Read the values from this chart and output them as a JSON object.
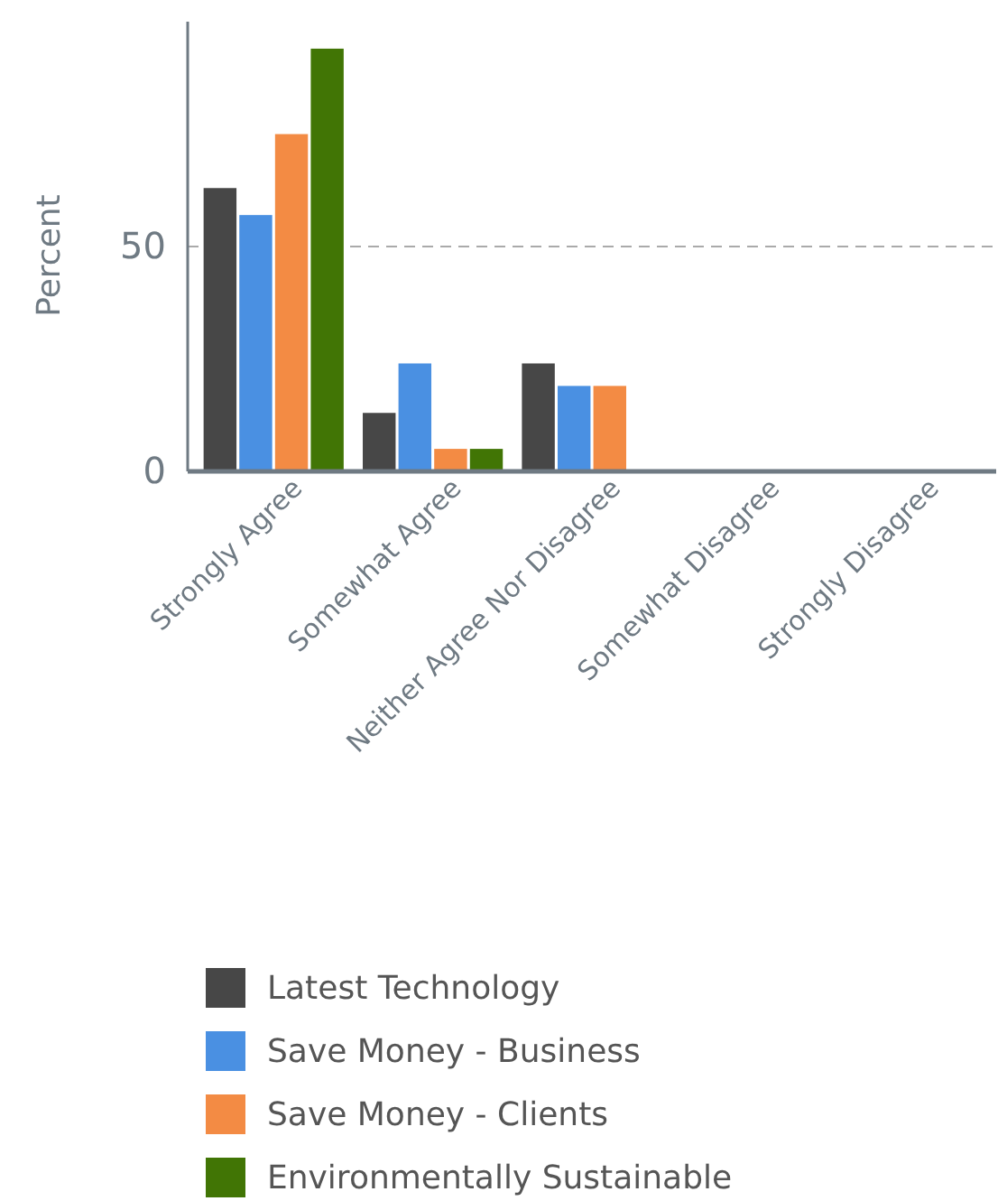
{
  "chart_data": {
    "type": "bar",
    "ylabel": "Percent",
    "categories": [
      "Strongly Agree",
      "Somewhat Agree",
      "Neither Agree Nor Disagree",
      "Somewhat Disagree",
      "Strongly Disagree"
    ],
    "series": [
      {
        "name": "Latest Technology",
        "color": "#474747",
        "values": [
          63,
          13,
          24,
          0,
          0
        ]
      },
      {
        "name": "Save Money - Business",
        "color": "#4a90e2",
        "values": [
          57,
          24,
          19,
          0,
          0
        ]
      },
      {
        "name": "Save Money - Clients",
        "color": "#f38b44",
        "values": [
          75,
          5,
          19,
          0,
          0
        ]
      },
      {
        "name": "Environmentally Sustainable",
        "color": "#417505",
        "values": [
          94,
          5,
          0,
          0,
          0
        ]
      }
    ],
    "ylim": [
      0,
      100
    ],
    "yticks": [
      0,
      50
    ],
    "grid": "y",
    "legend": "bottom"
  }
}
